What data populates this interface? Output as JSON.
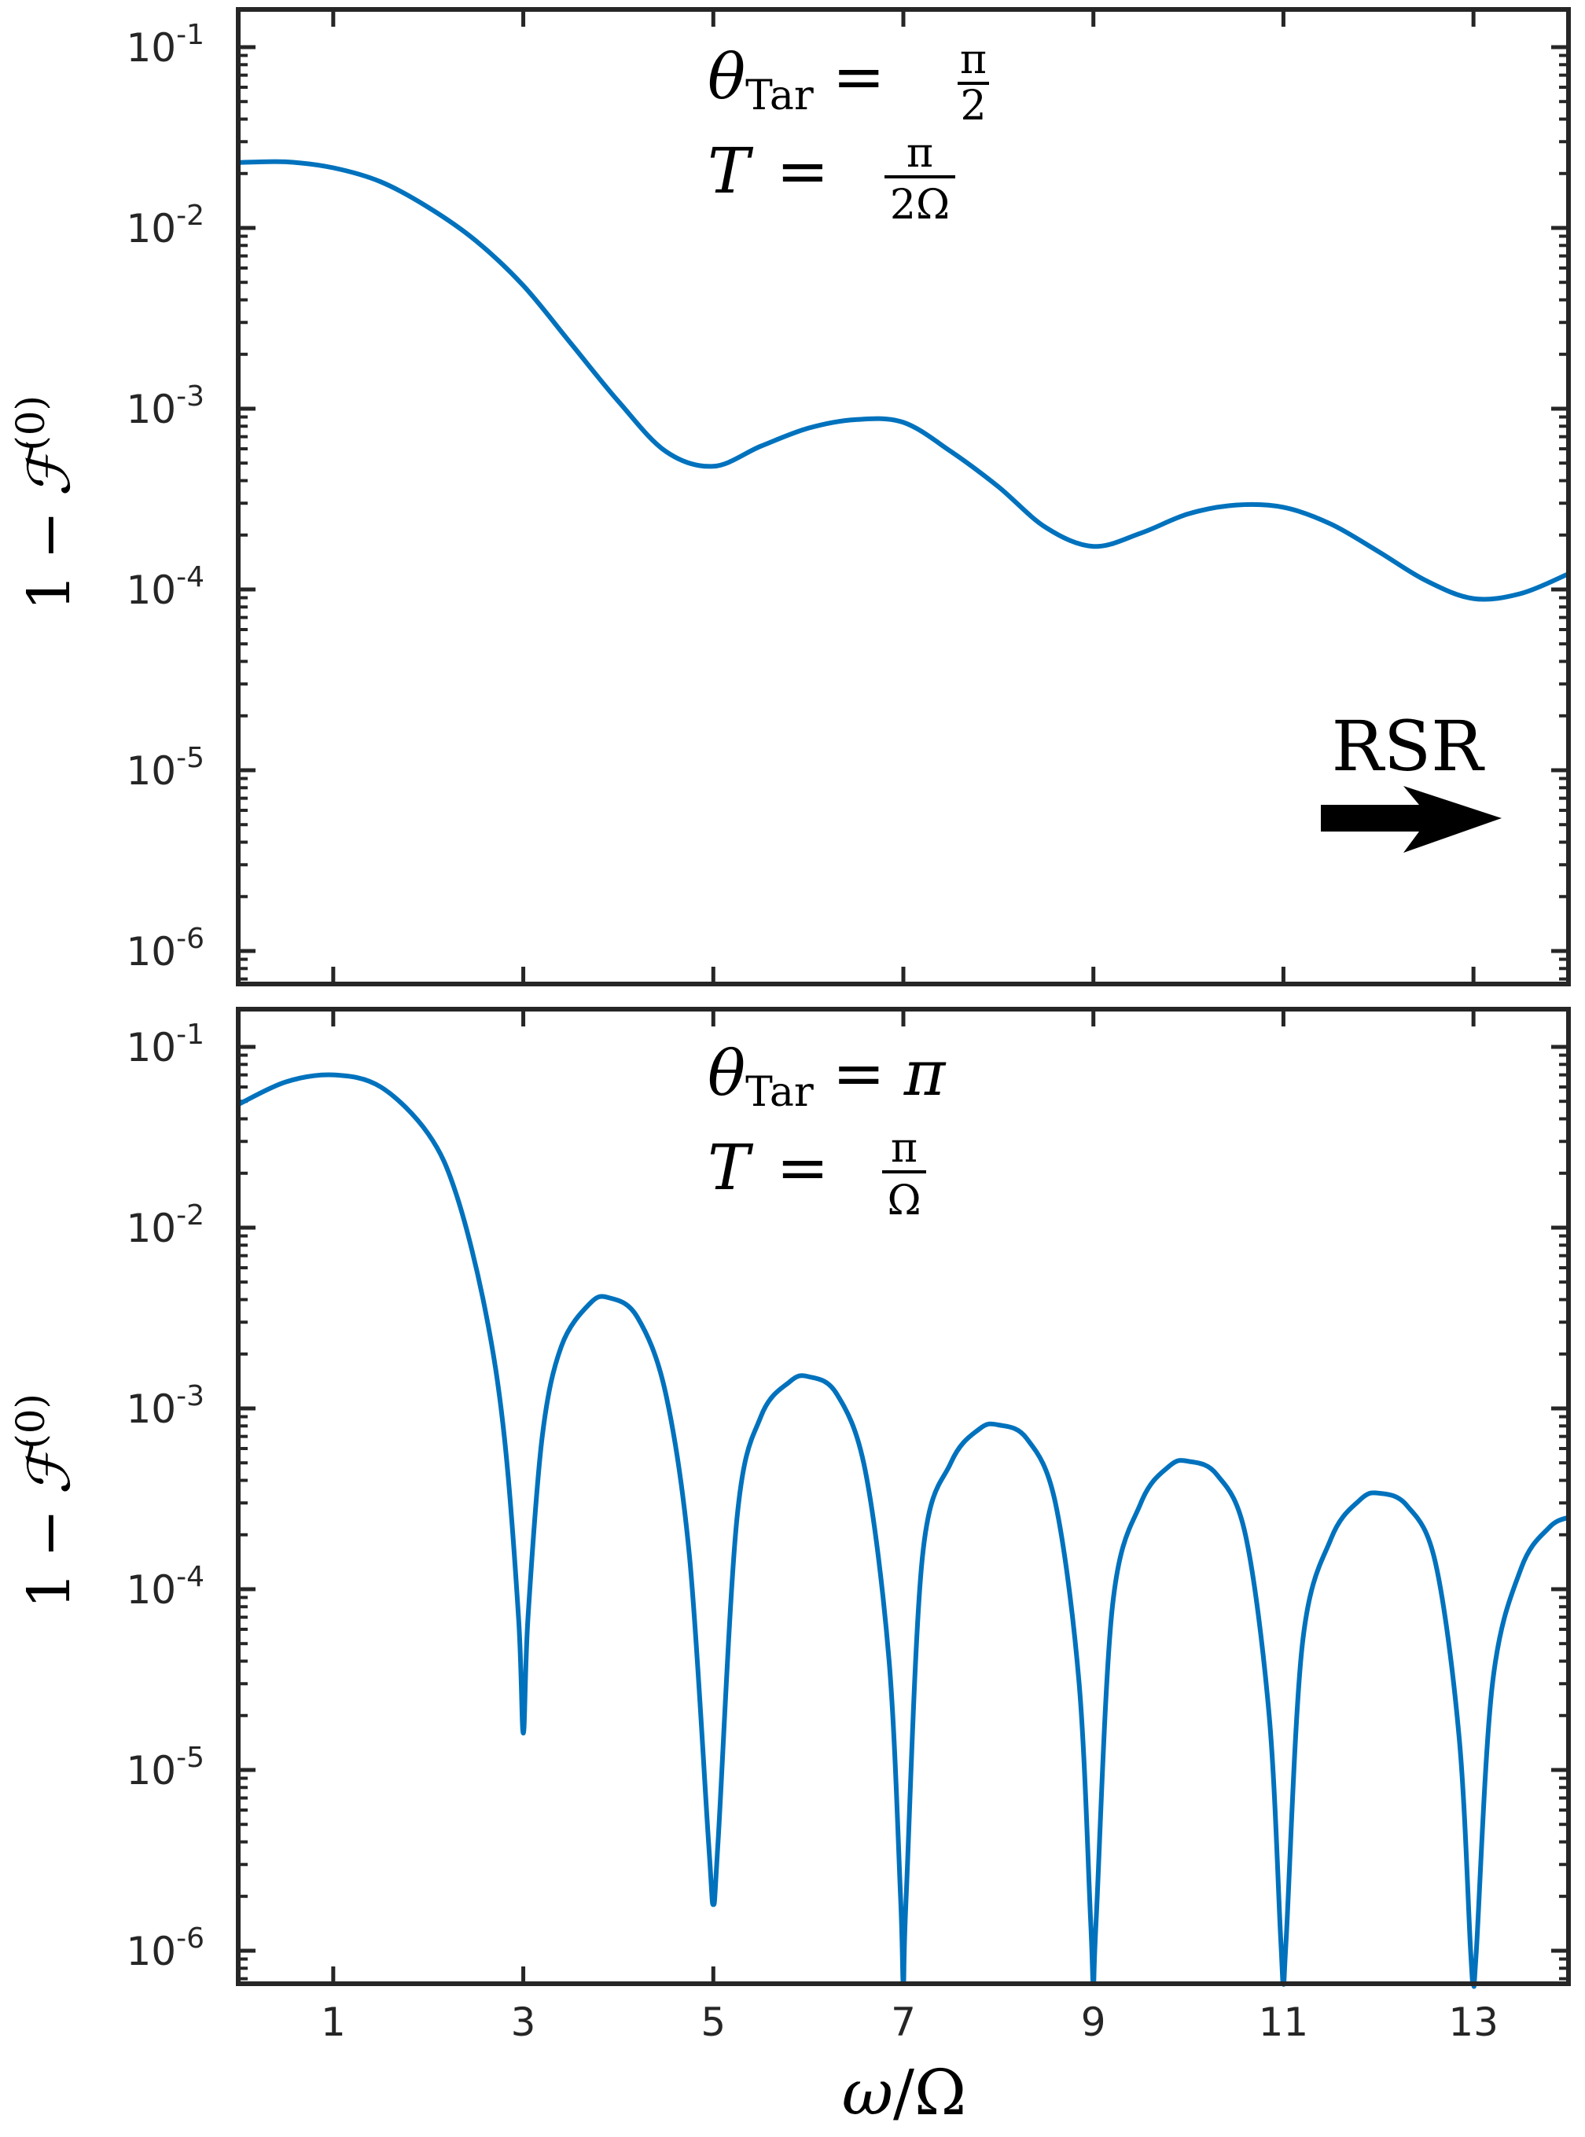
{
  "colors": {
    "series": "#0072BD",
    "axes": "#262626",
    "text": "#000000"
  },
  "chart_data": [
    {
      "type": "line",
      "panel": "top",
      "title": "",
      "xlabel": "",
      "ylabel_parts": {
        "one": "1",
        "minus": "−",
        "F": "ℱ",
        "sup": "(0)"
      },
      "yscale": "log",
      "xlim": [
        0,
        14
      ],
      "ylim": [
        6e-07,
        0.15
      ],
      "xticks": [
        1,
        3,
        5,
        7,
        9,
        11,
        13
      ],
      "yticks": [
        {
          "base": "10",
          "exp": "-1"
        },
        {
          "base": "10",
          "exp": "-2"
        },
        {
          "base": "10",
          "exp": "-3"
        },
        {
          "base": "10",
          "exp": "-4"
        },
        {
          "base": "10",
          "exp": "-5"
        },
        {
          "base": "10",
          "exp": "-6"
        }
      ],
      "annotations": {
        "theta": "θ",
        "theta_sub": "Tar",
        "eq1": "=",
        "frac1_num": "π",
        "frac1_den": "2",
        "T": "T",
        "eq2": "=",
        "frac2_num": "π",
        "frac2_den": "2Ω",
        "arrow_label": "RSR"
      },
      "series": [
        {
          "color": "#0072BD",
          "x": [
            0,
            0.5,
            1,
            1.5,
            2,
            2.5,
            3,
            3.5,
            4,
            4.5,
            5,
            5.5,
            6,
            6.5,
            7,
            7.5,
            8,
            8.5,
            9,
            9.5,
            10,
            10.5,
            11,
            11.5,
            12,
            12.5,
            13,
            13.5,
            14
          ],
          "y": [
            0.023,
            0.0232,
            0.0215,
            0.018,
            0.013,
            0.0085,
            0.0048,
            0.0023,
            0.0011,
            0.00058,
            0.00048,
            0.00062,
            0.00078,
            0.00087,
            0.00084,
            0.00058,
            0.00037,
            0.00022,
            0.000173,
            0.000205,
            0.000262,
            0.000293,
            0.000285,
            0.00023,
            0.000162,
            0.000112,
            8.9e-05,
            9.5e-05,
            0.000122
          ]
        }
      ]
    },
    {
      "type": "line",
      "panel": "bottom",
      "title": "",
      "xlabel_parts": {
        "omega": "ω",
        "slash": "/",
        "Omega": "Ω"
      },
      "ylabel_parts": {
        "one": "1",
        "minus": "−",
        "F": "ℱ",
        "sup": "(0)"
      },
      "yscale": "log",
      "xlim": [
        0,
        14
      ],
      "ylim": [
        6e-07,
        0.15
      ],
      "xticks": [
        1,
        3,
        5,
        7,
        9,
        11,
        13
      ],
      "yticks": [
        {
          "base": "10",
          "exp": "-1"
        },
        {
          "base": "10",
          "exp": "-2"
        },
        {
          "base": "10",
          "exp": "-3"
        },
        {
          "base": "10",
          "exp": "-4"
        },
        {
          "base": "10",
          "exp": "-5"
        },
        {
          "base": "10",
          "exp": "-6"
        }
      ],
      "annotations": {
        "theta": "θ",
        "theta_sub": "Tar",
        "eq1": "=",
        "val1": "π",
        "T": "T",
        "eq2": "=",
        "frac2_num": "π",
        "frac2_den": "Ω"
      },
      "series": [
        {
          "color": "#0072BD",
          "x": [
            0,
            0.5,
            1,
            1.5,
            2,
            2.3,
            2.6,
            2.8,
            2.95,
            3,
            3.05,
            3.2,
            3.4,
            3.7,
            3.9,
            4.2,
            4.5,
            4.75,
            4.95,
            5,
            5.05,
            5.25,
            5.5,
            5.8,
            6,
            6.3,
            6.6,
            6.85,
            6.97,
            7,
            7.03,
            7.2,
            7.5,
            7.8,
            8,
            8.3,
            8.6,
            8.85,
            8.97,
            9,
            9.03,
            9.2,
            9.5,
            9.8,
            10,
            10.3,
            10.6,
            10.85,
            10.97,
            11,
            11.03,
            11.2,
            11.5,
            11.8,
            12,
            12.3,
            12.6,
            12.85,
            12.97,
            13,
            13.03,
            13.2,
            13.5,
            13.8,
            14
          ],
          "y": [
            0.048,
            0.064,
            0.07,
            0.06,
            0.033,
            0.015,
            0.0035,
            0.0007,
            7e-05,
            1.6e-05,
            7e-05,
            0.0007,
            0.0022,
            0.0038,
            0.0041,
            0.0032,
            0.0012,
            0.00015,
            4e-06,
            1.8e-06,
            4e-06,
            0.00025,
            0.0009,
            0.0014,
            0.0015,
            0.0012,
            0.00045,
            4e-05,
            2e-06,
            6e-07,
            2e-06,
            0.00015,
            0.0005,
            0.00077,
            0.00081,
            0.00068,
            0.0003,
            3e-05,
            1.5e-06,
            6e-07,
            1.5e-06,
            8e-05,
            0.0003,
            0.00048,
            0.00051,
            0.00043,
            0.0002,
            2e-05,
            1.2e-06,
            6e-07,
            1.2e-06,
            5e-05,
            0.00019,
            0.00031,
            0.00034,
            0.00029,
            0.00014,
            1.5e-05,
            1e-06,
            6e-07,
            1e-06,
            3e-05,
            0.00013,
            0.00022,
            0.00025
          ]
        }
      ]
    }
  ]
}
